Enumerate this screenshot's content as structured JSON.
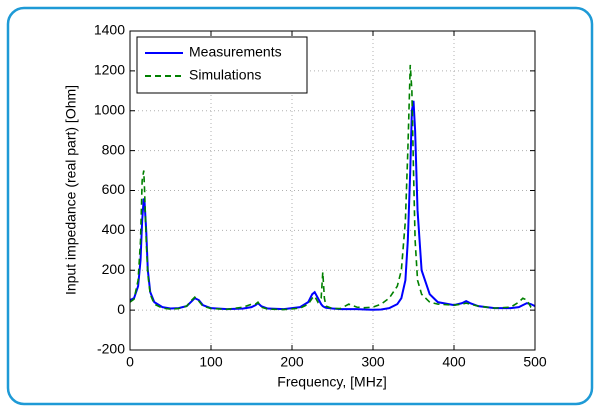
{
  "chart_data": {
    "type": "line",
    "xlabel": "Frequency, [MHz]",
    "ylabel": "Input impedance (real part) [Ohm]",
    "x": [
      0,
      5,
      10,
      13,
      15,
      17,
      18,
      20,
      22,
      25,
      30,
      40,
      50,
      60,
      70,
      75,
      80,
      85,
      90,
      100,
      120,
      140,
      150,
      155,
      158,
      162,
      170,
      190,
      210,
      220,
      225,
      228,
      232,
      236,
      238,
      240,
      242,
      250,
      260,
      270,
      280,
      290,
      300,
      310,
      320,
      330,
      335,
      340,
      343,
      346,
      348,
      350,
      352,
      355,
      360,
      370,
      380,
      400,
      410,
      415,
      420,
      430,
      450,
      470,
      480,
      485,
      490,
      495,
      500
    ],
    "series": [
      {
        "name": "Measurements",
        "color": "#0000ff",
        "dash": false,
        "values": [
          50,
          60,
          120,
          250,
          450,
          560,
          540,
          400,
          200,
          90,
          40,
          15,
          8,
          10,
          20,
          40,
          60,
          50,
          25,
          10,
          5,
          8,
          15,
          25,
          35,
          20,
          8,
          5,
          15,
          40,
          80,
          90,
          60,
          30,
          20,
          15,
          12,
          8,
          5,
          5,
          5,
          3,
          2,
          3,
          10,
          30,
          60,
          150,
          350,
          700,
          1000,
          1050,
          900,
          500,
          200,
          80,
          40,
          25,
          35,
          45,
          35,
          20,
          10,
          10,
          15,
          25,
          35,
          30,
          20
        ]
      },
      {
        "name": "Simulations",
        "color": "#008000",
        "dash": true,
        "values": [
          40,
          55,
          150,
          350,
          650,
          700,
          600,
          350,
          180,
          80,
          30,
          10,
          5,
          8,
          20,
          45,
          65,
          45,
          20,
          8,
          4,
          15,
          30,
          30,
          40,
          15,
          5,
          3,
          10,
          30,
          60,
          70,
          40,
          60,
          190,
          60,
          20,
          8,
          8,
          30,
          15,
          12,
          15,
          30,
          60,
          120,
          200,
          450,
          800,
          1230,
          1100,
          700,
          350,
          150,
          80,
          40,
          30,
          25,
          30,
          35,
          30,
          20,
          10,
          15,
          40,
          60,
          50,
          15,
          10
        ]
      }
    ],
    "xlim": [
      0,
      500
    ],
    "xticks": [
      0,
      100,
      200,
      300,
      400,
      500
    ],
    "ylim": [
      -200,
      1400
    ],
    "yticks": [
      -200,
      0,
      200,
      400,
      600,
      800,
      1000,
      1200,
      1400
    ],
    "grid": true,
    "legend": "upper left"
  }
}
